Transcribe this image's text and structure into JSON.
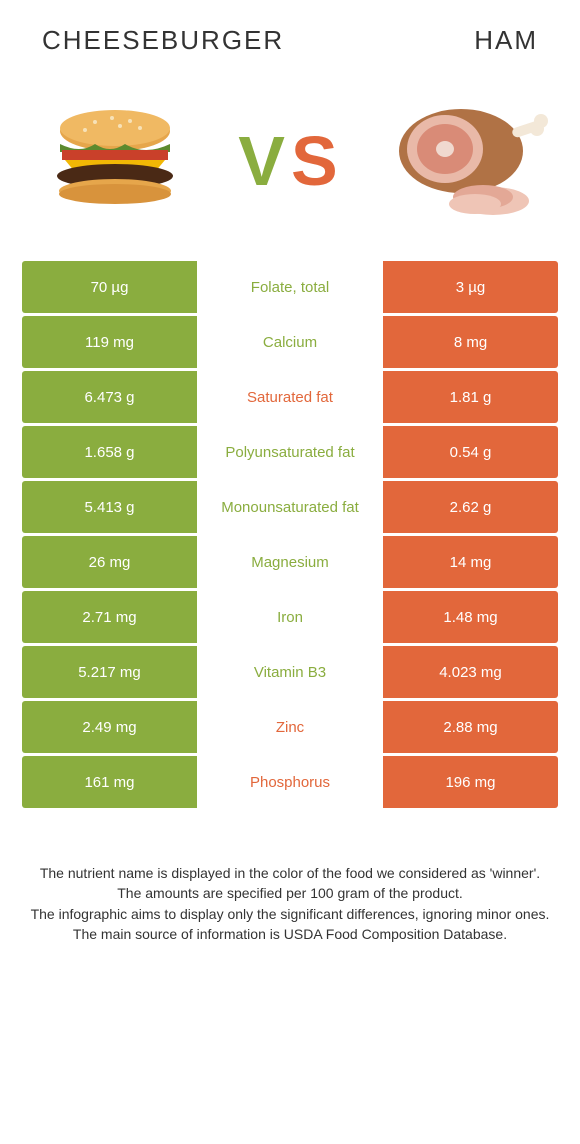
{
  "colors": {
    "green": "#8aad3f",
    "orange": "#e2673b",
    "white": "#ffffff",
    "text": "#333333"
  },
  "header": {
    "left": "CHEESEBURGER",
    "right": "HAM"
  },
  "vs": {
    "v": "V",
    "s": "S"
  },
  "rows": [
    {
      "left": "70 µg",
      "label": "Folate, total",
      "right": "3 µg",
      "winner": "left"
    },
    {
      "left": "119 mg",
      "label": "Calcium",
      "right": "8 mg",
      "winner": "left"
    },
    {
      "left": "6.473 g",
      "label": "Saturated fat",
      "right": "1.81 g",
      "winner": "right"
    },
    {
      "left": "1.658 g",
      "label": "Polyunsaturated fat",
      "right": "0.54 g",
      "winner": "left"
    },
    {
      "left": "5.413 g",
      "label": "Monounsaturated fat",
      "right": "2.62 g",
      "winner": "left"
    },
    {
      "left": "26 mg",
      "label": "Magnesium",
      "right": "14 mg",
      "winner": "left"
    },
    {
      "left": "2.71 mg",
      "label": "Iron",
      "right": "1.48 mg",
      "winner": "left"
    },
    {
      "left": "5.217 mg",
      "label": "Vitamin B3",
      "right": "4.023 mg",
      "winner": "left"
    },
    {
      "left": "2.49 mg",
      "label": "Zinc",
      "right": "2.88 mg",
      "winner": "right"
    },
    {
      "left": "161 mg",
      "label": "Phosphorus",
      "right": "196 mg",
      "winner": "right"
    }
  ],
  "footer": {
    "line1": "The nutrient name is displayed in the color of the food we considered as 'winner'.",
    "line2": "The amounts are specified per 100 gram of the product.",
    "line3": "The infographic aims to display only the significant differences, ignoring minor ones.",
    "line4": "The main source of information is USDA Food Composition Database."
  }
}
